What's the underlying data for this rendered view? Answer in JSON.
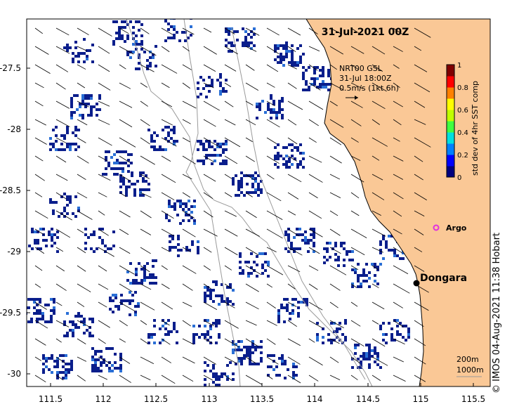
{
  "title": "31-Jul-2021 00Z",
  "current_info": {
    "line1": "NRT00 GSL",
    "line2": "31-Jul 18:00Z",
    "line3": "0.5m/s (1kt 6h)"
  },
  "colorbar": {
    "label": "std dev of 4hr SST comp",
    "ticks": [
      "0",
      "0.2",
      "0.4",
      "0.6",
      "0.8",
      "1"
    ],
    "colors": [
      "#00007f",
      "#0000ff",
      "#0080ff",
      "#00e0e0",
      "#40ff40",
      "#c0ff00",
      "#ffff00",
      "#ff8000",
      "#ff0000",
      "#800000"
    ]
  },
  "markers": {
    "argo": {
      "label": "Argo",
      "color": "#e030e0"
    },
    "town": {
      "label": "Dongara"
    }
  },
  "axes": {
    "x_ticks": [
      "111.5",
      "112",
      "112.5",
      "113",
      "113.5",
      "114",
      "114.5",
      "115",
      "115.5"
    ],
    "y_ticks": [
      "-27.5",
      "-28",
      "-28.5",
      "-29",
      "-29.5",
      "-30"
    ],
    "x_range": [
      111.3,
      115.6
    ],
    "y_range": [
      -30.1,
      -27.07
    ]
  },
  "scale": {
    "line1": "200m",
    "line2": "1000m"
  },
  "credit": "© IMOS 04-Aug-2021 11:38 Hobart",
  "colors": {
    "land": "#fac896",
    "pixel_main": "#0a1e8c",
    "pixel_light": "#2a6fd6",
    "arrow": "#000000",
    "isobath": "#9a9a9a"
  }
}
